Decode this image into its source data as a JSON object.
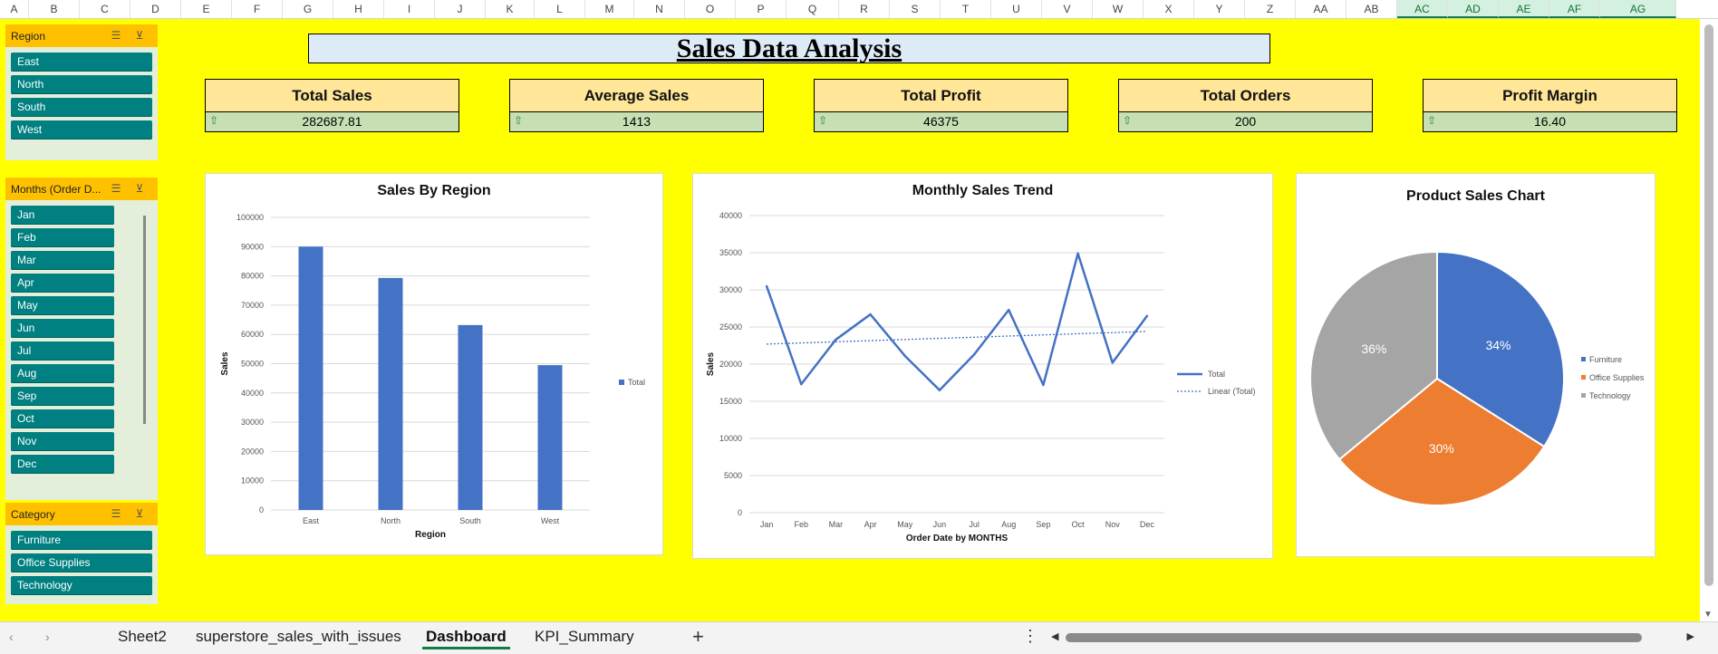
{
  "columns": [
    "A",
    "B",
    "C",
    "D",
    "E",
    "F",
    "G",
    "H",
    "I",
    "J",
    "K",
    "L",
    "M",
    "N",
    "O",
    "P",
    "Q",
    "R",
    "S",
    "T",
    "U",
    "V",
    "W",
    "X",
    "Y",
    "Z",
    "AA",
    "AB",
    "AC",
    "AD",
    "AE",
    "AF",
    "AG"
  ],
  "selected_columns": [
    "AC",
    "AD",
    "AE",
    "AF",
    "AG"
  ],
  "slicers": {
    "region": {
      "title": "Region",
      "items": [
        "East",
        "North",
        "South",
        "West"
      ]
    },
    "months": {
      "title": "Months (Order D...",
      "items": [
        "Jan",
        "Feb",
        "Mar",
        "Apr",
        "May",
        "Jun",
        "Jul",
        "Aug",
        "Sep",
        "Oct",
        "Nov",
        "Dec"
      ]
    },
    "category": {
      "title": "Category",
      "items": [
        "Furniture",
        "Office Supplies",
        "Technology"
      ]
    },
    "multiselect_icon": "multi-select-icon",
    "clear_filter_icon": "clear-filter-icon"
  },
  "dashboard_title": "Sales Data Analysis",
  "kpis": [
    {
      "label": "Total Sales",
      "value": "282687.81"
    },
    {
      "label": "Average Sales",
      "value": "1413"
    },
    {
      "label": "Total Profit",
      "value": "46375"
    },
    {
      "label": "Total Orders",
      "value": "200"
    },
    {
      "label": "Profit Margin",
      "value": "16.40"
    }
  ],
  "colors": {
    "sheet_bg": "#ffff00",
    "slicer_header": "#ffc000",
    "slicer_item": "#008080",
    "bar": "#4472c4",
    "line": "#4472c4",
    "pie": [
      "#4472c4",
      "#ed7d31",
      "#a5a5a5"
    ]
  },
  "chart_data": [
    {
      "type": "bar",
      "title": "Sales By Region",
      "xlabel": "Region",
      "ylabel": "Sales",
      "categories": [
        "East",
        "North",
        "South",
        "West"
      ],
      "series": [
        {
          "name": "Total",
          "values": [
            90000,
            79300,
            63200,
            49500
          ]
        }
      ],
      "ylim": [
        0,
        100000
      ],
      "yticks": [
        "0",
        "10000",
        "20000",
        "30000",
        "40000",
        "50000",
        "60000",
        "70000",
        "80000",
        "90000",
        "100000"
      ],
      "grid": true,
      "legend": "right"
    },
    {
      "type": "line",
      "title": "Monthly Sales Trend",
      "xlabel": "Order Date by MONTHS",
      "ylabel": "Sales",
      "categories": [
        "Jan",
        "Feb",
        "Mar",
        "Apr",
        "May",
        "Jun",
        "Jul",
        "Aug",
        "Sep",
        "Oct",
        "Nov",
        "Dec"
      ],
      "series": [
        {
          "name": "Total",
          "values": [
            30500,
            17300,
            23300,
            26700,
            21100,
            16500,
            21300,
            27300,
            17200,
            34900,
            20200,
            26500
          ]
        }
      ],
      "trendline": {
        "name": "Linear (Total)",
        "start": 22700,
        "end": 24400
      },
      "ylim": [
        0,
        40000
      ],
      "yticks": [
        "0",
        "5000",
        "10000",
        "15000",
        "20000",
        "25000",
        "30000",
        "35000",
        "40000"
      ],
      "grid": true,
      "legend": "right"
    },
    {
      "type": "pie",
      "title": "Product Sales Chart",
      "categories": [
        "Furniture",
        "Office Supplies",
        "Technology"
      ],
      "values": [
        34,
        30,
        36
      ],
      "labels": [
        "34%",
        "30%",
        "36%"
      ],
      "legend": "right"
    }
  ],
  "tabs": [
    "Sheet2",
    "superstore_sales_with_issues",
    "Dashboard",
    "KPI_Summary"
  ],
  "active_tab": "Dashboard",
  "tab_icons": {
    "prev": "‹",
    "next": "›",
    "add": "+",
    "more": "⋮"
  }
}
